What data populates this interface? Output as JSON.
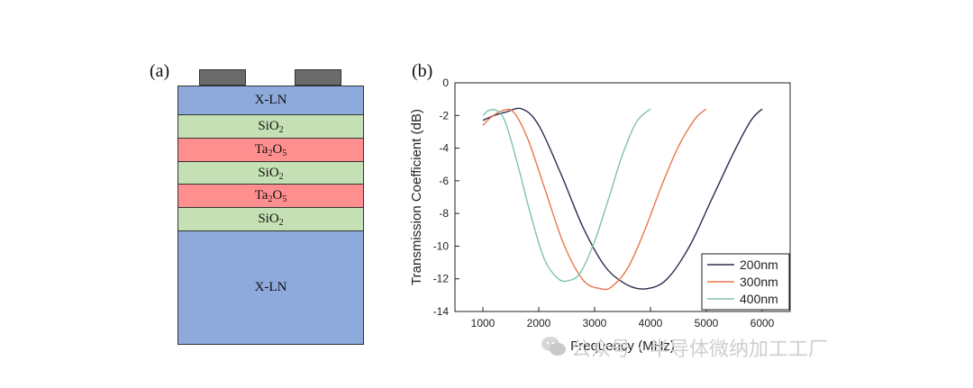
{
  "panel_a": {
    "label": "(a)",
    "layers": [
      {
        "base": "X-LN",
        "sub1": "",
        "mid": "",
        "sub2": "",
        "color": "#8ea9db"
      },
      {
        "base": "SiO",
        "sub1": "2",
        "mid": "",
        "sub2": "",
        "color": "#c5e0b4"
      },
      {
        "base": "Ta",
        "sub1": "2",
        "mid": "O",
        "sub2": "5",
        "color": "#ff8f8f"
      },
      {
        "base": "SiO",
        "sub1": "2",
        "mid": "",
        "sub2": "",
        "color": "#c5e0b4"
      },
      {
        "base": "Ta",
        "sub1": "2",
        "mid": "O",
        "sub2": "5",
        "color": "#ff8f8f"
      },
      {
        "base": "SiO",
        "sub1": "2",
        "mid": "",
        "sub2": "",
        "color": "#c5e0b4"
      },
      {
        "base": "X-LN",
        "sub1": "",
        "mid": "",
        "sub2": "",
        "color": "#8ea9db"
      }
    ],
    "electrode_color": "#6b6b6b"
  },
  "panel_b": {
    "label": "(b)"
  },
  "chart_data": {
    "type": "line",
    "xlabel": "Frequency (MHz)",
    "ylabel": "Transmission Coefficient (dB)",
    "xlim": [
      500,
      6500
    ],
    "ylim": [
      -14,
      0
    ],
    "xticks": [
      1000,
      2000,
      3000,
      4000,
      5000,
      6000
    ],
    "yticks": [
      0,
      -2,
      -4,
      -6,
      -8,
      -10,
      -12,
      -14
    ],
    "legend_position": "bottom-right",
    "series": [
      {
        "name": "200nm",
        "color": "#2b2b4e",
        "x": [
          1000,
          1200,
          1400,
          1700,
          2000,
          2400,
          2800,
          3200,
          3600,
          3950,
          4300,
          4700,
          5100,
          5500,
          5800,
          6000
        ],
        "y": [
          -2.3,
          -2.0,
          -1.8,
          -1.6,
          -2.6,
          -5.6,
          -8.9,
          -11.3,
          -12.4,
          -12.6,
          -12.0,
          -10.0,
          -7.1,
          -4.2,
          -2.3,
          -1.6
        ]
      },
      {
        "name": "300nm",
        "color": "#e8784f",
        "x": [
          1000,
          1150,
          1350,
          1550,
          1800,
          2100,
          2450,
          2800,
          3100,
          3300,
          3600,
          3900,
          4200,
          4500,
          4800,
          5000
        ],
        "y": [
          -2.6,
          -2.1,
          -1.7,
          -1.8,
          -3.4,
          -6.4,
          -9.9,
          -12.1,
          -12.6,
          -12.5,
          -11.3,
          -9.0,
          -6.3,
          -3.9,
          -2.2,
          -1.6
        ]
      },
      {
        "name": "400nm",
        "color": "#7fc2b0",
        "x": [
          1000,
          1100,
          1250,
          1400,
          1600,
          1850,
          2100,
          2350,
          2550,
          2750,
          3000,
          3250,
          3500,
          3750,
          4000
        ],
        "y": [
          -2.0,
          -1.7,
          -1.7,
          -2.4,
          -4.7,
          -8.0,
          -10.8,
          -12.0,
          -12.1,
          -11.6,
          -9.7,
          -7.1,
          -4.4,
          -2.4,
          -1.6
        ]
      }
    ]
  },
  "watermark": {
    "text": "公众号 · 半导体微纳加工工厂",
    "icon": "wechat-icon"
  }
}
